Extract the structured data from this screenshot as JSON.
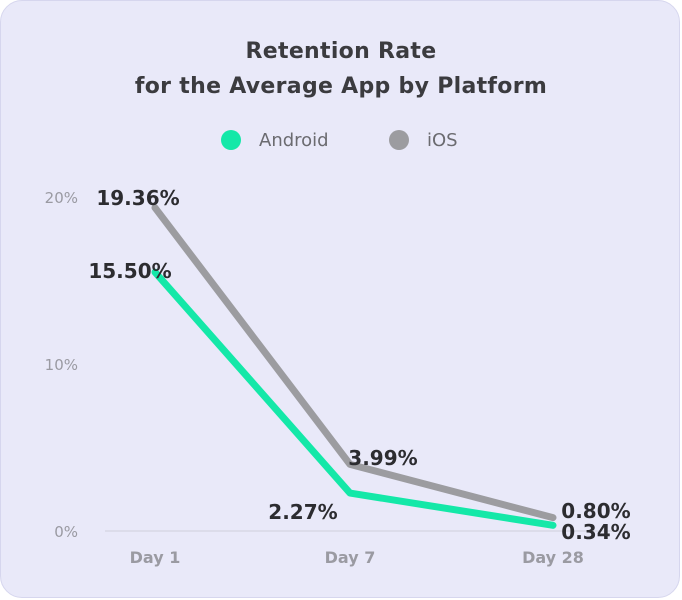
{
  "colors": {
    "android": "#14e8a8",
    "ios": "#9c9ca0",
    "background": "#e9e9f9",
    "text_dark": "#2c2c30",
    "text_axis": "#9a9aa2"
  },
  "chart_data": {
    "type": "line",
    "title": [
      "Retention Rate",
      "for the Average App by Platform"
    ],
    "categories": [
      "Day 1",
      "Day 7",
      "Day 28"
    ],
    "ylim": [
      0,
      20
    ],
    "yticks": [
      {
        "value": 0,
        "label": "0%"
      },
      {
        "value": 10,
        "label": "10%"
      },
      {
        "value": 20,
        "label": "20%"
      }
    ],
    "legend": "top-center",
    "grid": false,
    "series": [
      {
        "name": "Android",
        "values": [
          15.5,
          2.27,
          0.34
        ],
        "labels": [
          "15.50%",
          "2.27%",
          "0.34%"
        ]
      },
      {
        "name": "iOS",
        "values": [
          19.36,
          3.99,
          0.8
        ],
        "labels": [
          "19.36%",
          "3.99%",
          "0.80%"
        ]
      }
    ]
  }
}
